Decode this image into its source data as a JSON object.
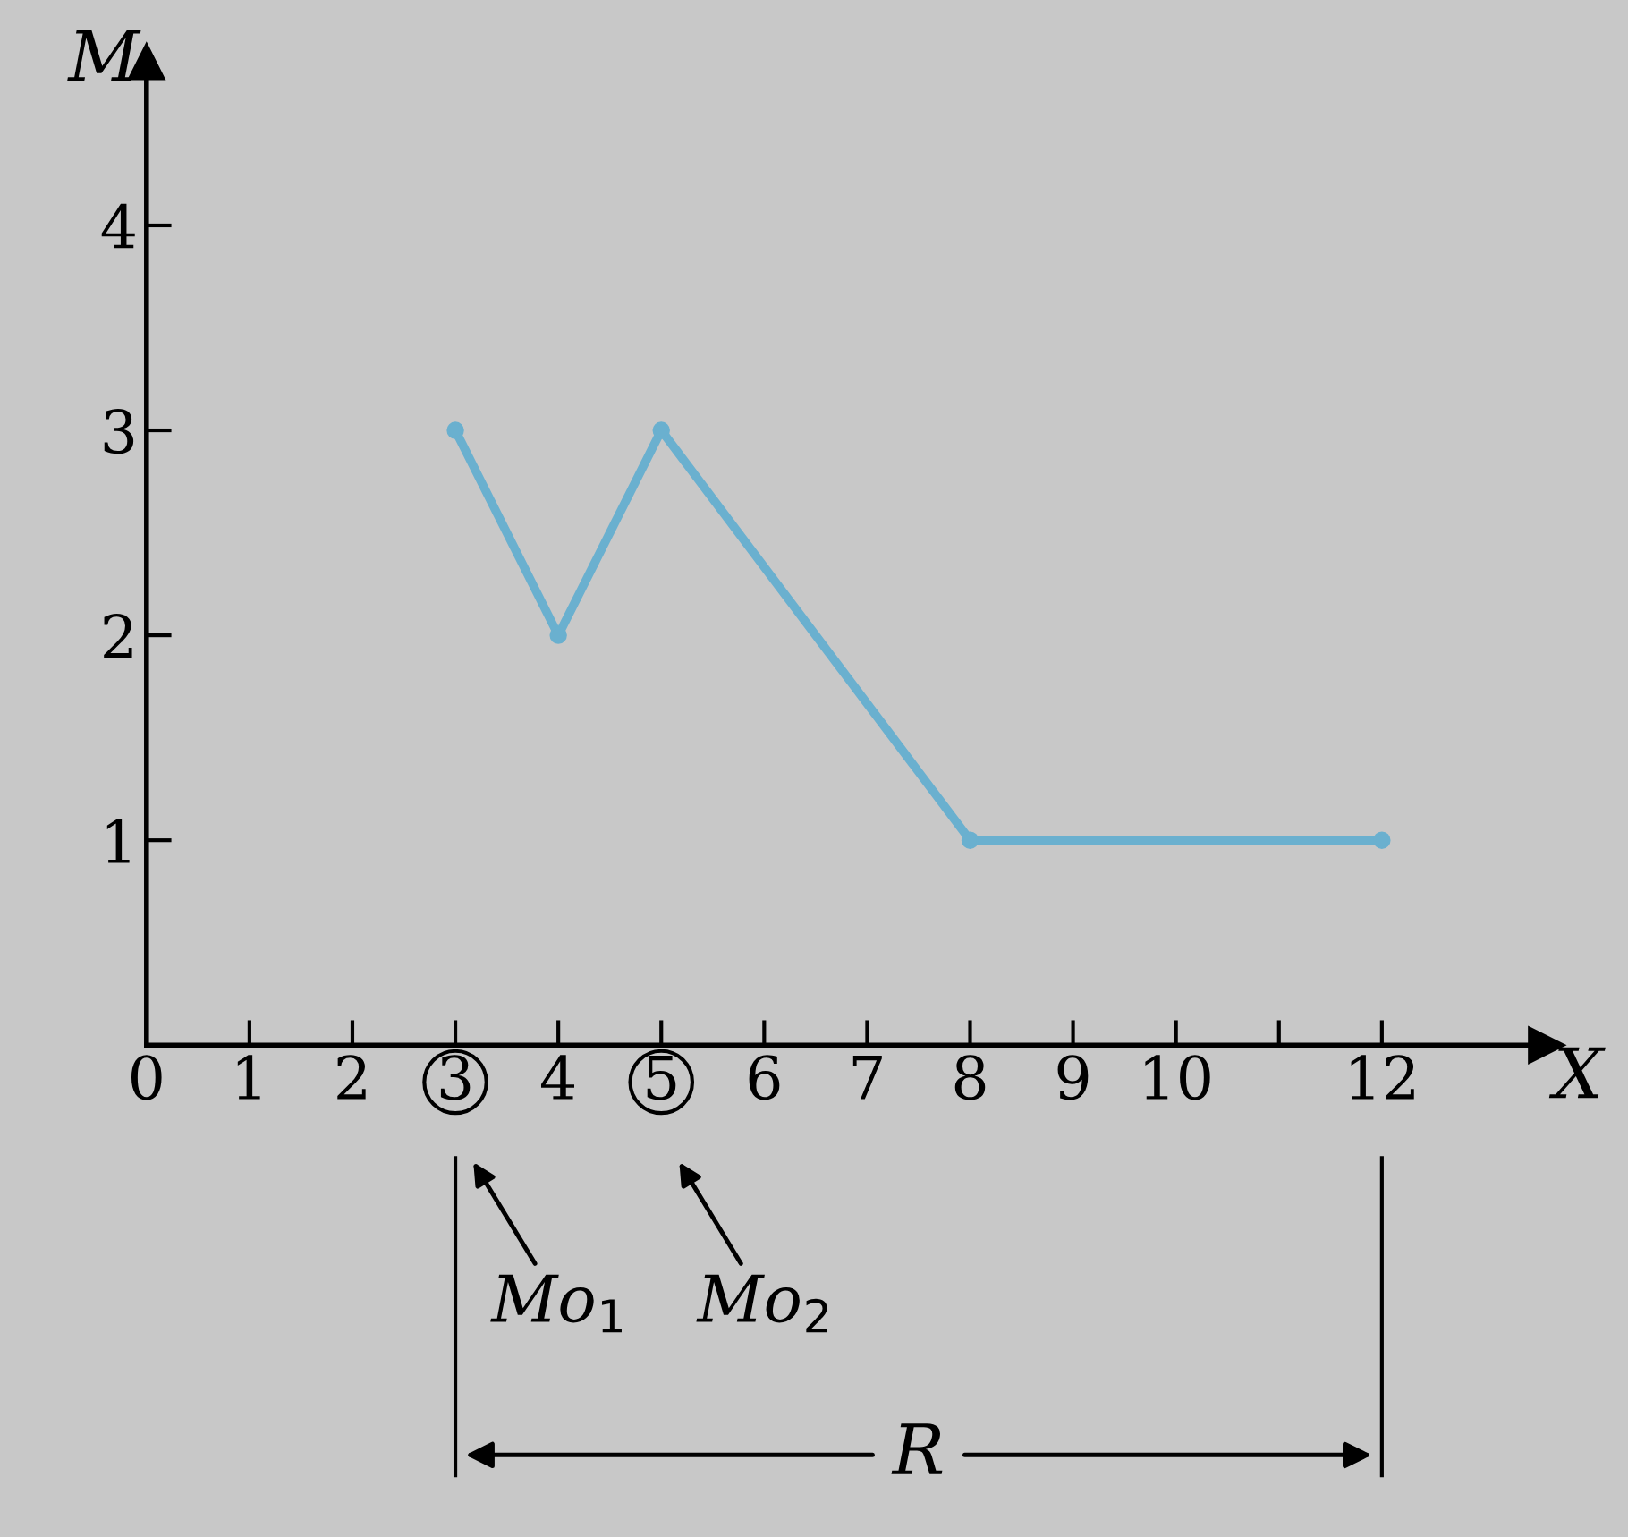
{
  "chart_data": {
    "type": "line",
    "xlabel": "X",
    "ylabel": "M",
    "x": [
      3,
      4,
      5,
      8,
      12
    ],
    "series": [
      {
        "color": "#6ab0cf",
        "values": [
          3,
          2,
          3,
          1,
          1
        ]
      }
    ],
    "marker": "circle",
    "line_style": "solid",
    "grid": false,
    "legend": false,
    "xlim": [
      0,
      13.6
    ],
    "ylim": [
      0,
      4.8
    ],
    "xticks": [
      {
        "value": 0,
        "label": "0"
      },
      1,
      2,
      3,
      4,
      5,
      6,
      7,
      8,
      9,
      10,
      {
        "value": 11,
        "label": null
      },
      12
    ],
    "yticks": [
      1,
      2,
      3,
      4
    ],
    "annotations": [
      "Mo$_{1}$",
      "Mo$_{2}$",
      "R"
    ]
  }
}
